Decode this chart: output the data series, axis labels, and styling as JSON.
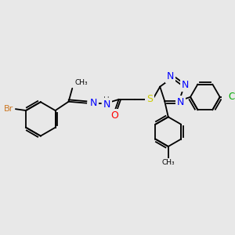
{
  "bg_color": "#e8e8e8",
  "bond_color": "#000000",
  "atom_colors": {
    "Br": "#cc7722",
    "N": "#0000ff",
    "O": "#ff0000",
    "S": "#cccc00",
    "Cl": "#00aa00",
    "C": "#000000",
    "H": "#555555"
  },
  "font_size": 7.5,
  "figsize": [
    3.0,
    3.0
  ],
  "dpi": 100
}
